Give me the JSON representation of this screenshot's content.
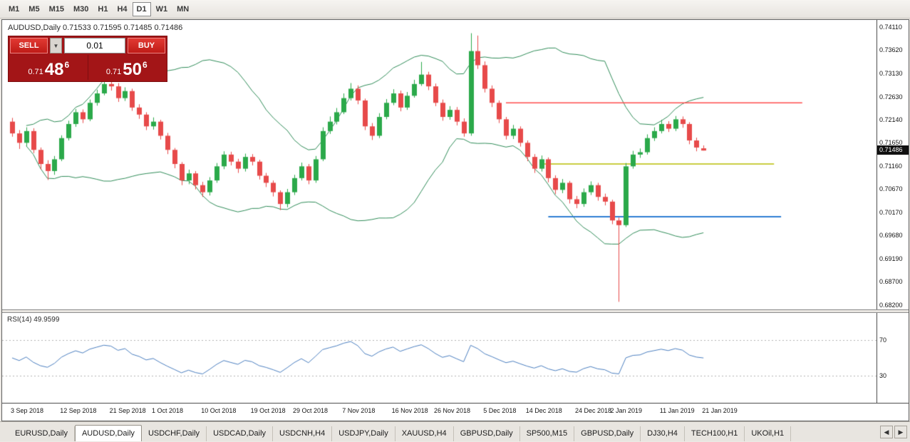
{
  "toolbar": {
    "timeframes": [
      {
        "label": "M1",
        "active": false
      },
      {
        "label": "M5",
        "active": false
      },
      {
        "label": "M15",
        "active": false
      },
      {
        "label": "M30",
        "active": false
      },
      {
        "label": "H1",
        "active": false
      },
      {
        "label": "H4",
        "active": false
      },
      {
        "label": "D1",
        "active": true
      },
      {
        "label": "W1",
        "active": false
      },
      {
        "label": "MN",
        "active": false
      }
    ]
  },
  "chart": {
    "title": "AUDUSD,Daily  0.71533 0.71595 0.71485 0.71486",
    "current_price": "0.71486",
    "price_axis_labels": [
      "0.74110",
      "0.73620",
      "0.73130",
      "0.72630",
      "0.72140",
      "0.71650",
      "0.71160",
      "0.70670",
      "0.70170",
      "0.69680",
      "0.69190",
      "0.68700",
      "0.68200"
    ]
  },
  "one_click": {
    "sell_label": "SELL",
    "buy_label": "BUY",
    "lot_value": "0.01",
    "dropdown_icon": "▼",
    "bid": {
      "prefix": "0.71",
      "big": "48",
      "sup": "6"
    },
    "ask": {
      "prefix": "0.71",
      "big": "50",
      "sup": "6"
    }
  },
  "rsi_panel": {
    "label": "RSI(14) 49.9599",
    "levels": [
      "70",
      "30"
    ]
  },
  "tab_arrows": {
    "left": "◀",
    "right": "▶"
  },
  "tabs": [
    {
      "label": "EURUSD,Daily",
      "active": false
    },
    {
      "label": "AUDUSD,Daily",
      "active": true
    },
    {
      "label": "USDCHF,Daily",
      "active": false
    },
    {
      "label": "USDCAD,Daily",
      "active": false
    },
    {
      "label": "USDCNH,H4",
      "active": false
    },
    {
      "label": "USDJPY,Daily",
      "active": false
    },
    {
      "label": "XAUUSD,H4",
      "active": false
    },
    {
      "label": "GBPUSD,Daily",
      "active": false
    },
    {
      "label": "SP500,M15",
      "active": false
    },
    {
      "label": "GBPUSD,Daily",
      "active": false
    },
    {
      "label": "DJ30,H4",
      "active": false
    },
    {
      "label": "TECH100,H1",
      "active": false
    },
    {
      "label": "UKOil,H1",
      "active": false
    }
  ],
  "ui_colors": {
    "panel_red": "#a31517",
    "trade_button_red": "#c01c18",
    "current_price_badge": "#101010"
  },
  "chart_data": {
    "type": "candlestick",
    "symbol": "AUDUSD",
    "timeframe": "Daily",
    "y_range": [
      0.682,
      0.7411
    ],
    "candle_colors": {
      "up": "#2ba94a",
      "down": "#e74a4a"
    },
    "indicators": {
      "bollinger": {
        "period": 20,
        "deviation": 2,
        "color": "#2e8b57"
      },
      "rsi": {
        "period": 14,
        "current": 49.9599,
        "levels": [
          70,
          30
        ],
        "color": "#4a7ebf",
        "level_color": "#b0b0b0"
      }
    },
    "horizontal_lines": [
      {
        "price": 0.725,
        "color": "#ff4d4d",
        "from_index": 70,
        "to_index": 112,
        "width": 1.4
      },
      {
        "price": 0.712,
        "color": "#b9bd00",
        "from_index": 75,
        "to_index": 108,
        "width": 1.4
      },
      {
        "price": 0.7008,
        "color": "#2d7dd2",
        "from_index": 76,
        "to_index": 109,
        "width": 2
      }
    ],
    "x_labels": [
      {
        "label": "3 Sep 2018",
        "index": 0
      },
      {
        "label": "12 Sep 2018",
        "index": 7
      },
      {
        "label": "21 Sep 2018",
        "index": 14
      },
      {
        "label": "1 Oct 2018",
        "index": 20
      },
      {
        "label": "10 Oct 2018",
        "index": 27
      },
      {
        "label": "19 Oct 2018",
        "index": 34
      },
      {
        "label": "29 Oct 2018",
        "index": 40
      },
      {
        "label": "7 Nov 2018",
        "index": 47
      },
      {
        "label": "16 Nov 2018",
        "index": 54
      },
      {
        "label": "26 Nov 2018",
        "index": 60
      },
      {
        "label": "5 Dec 2018",
        "index": 67
      },
      {
        "label": "14 Dec 2018",
        "index": 73
      },
      {
        "label": "24 Dec 2018",
        "index": 80
      },
      {
        "label": "2 Jan 2019",
        "index": 85
      },
      {
        "label": "11 Jan 2019",
        "index": 92
      },
      {
        "label": "21 Jan 2019",
        "index": 98
      }
    ],
    "open_high_low_close": [
      [
        0.721,
        0.7218,
        0.7178,
        0.7185
      ],
      [
        0.7185,
        0.7192,
        0.7152,
        0.7165
      ],
      [
        0.7165,
        0.7198,
        0.7158,
        0.719
      ],
      [
        0.719,
        0.7196,
        0.7143,
        0.715
      ],
      [
        0.715,
        0.7155,
        0.7108,
        0.712
      ],
      [
        0.712,
        0.7128,
        0.7086,
        0.7105
      ],
      [
        0.7105,
        0.7137,
        0.7097,
        0.713
      ],
      [
        0.713,
        0.7181,
        0.7126,
        0.7175
      ],
      [
        0.7175,
        0.7212,
        0.717,
        0.7205
      ],
      [
        0.7205,
        0.7237,
        0.7199,
        0.723
      ],
      [
        0.723,
        0.7236,
        0.7207,
        0.7215
      ],
      [
        0.7215,
        0.7257,
        0.7211,
        0.725
      ],
      [
        0.725,
        0.7278,
        0.7244,
        0.727
      ],
      [
        0.727,
        0.7304,
        0.7266,
        0.729
      ],
      [
        0.729,
        0.7298,
        0.7276,
        0.7285
      ],
      [
        0.7285,
        0.7292,
        0.7252,
        0.726
      ],
      [
        0.726,
        0.7283,
        0.7254,
        0.7275
      ],
      [
        0.7275,
        0.728,
        0.7233,
        0.724
      ],
      [
        0.724,
        0.7247,
        0.7216,
        0.7225
      ],
      [
        0.7225,
        0.723,
        0.7192,
        0.72
      ],
      [
        0.72,
        0.7219,
        0.7193,
        0.721
      ],
      [
        0.721,
        0.7214,
        0.7172,
        0.718
      ],
      [
        0.718,
        0.7186,
        0.7141,
        0.715
      ],
      [
        0.715,
        0.7154,
        0.7111,
        0.712
      ],
      [
        0.712,
        0.7124,
        0.7075,
        0.7085
      ],
      [
        0.7085,
        0.7108,
        0.7077,
        0.71
      ],
      [
        0.71,
        0.7105,
        0.7066,
        0.7075
      ],
      [
        0.7075,
        0.7082,
        0.705,
        0.706
      ],
      [
        0.706,
        0.7092,
        0.7053,
        0.7085
      ],
      [
        0.7085,
        0.7122,
        0.708,
        0.7115
      ],
      [
        0.7115,
        0.7147,
        0.7109,
        0.714
      ],
      [
        0.714,
        0.7146,
        0.7117,
        0.7125
      ],
      [
        0.7125,
        0.7131,
        0.7101,
        0.711
      ],
      [
        0.711,
        0.7142,
        0.7104,
        0.7135
      ],
      [
        0.7135,
        0.7141,
        0.7117,
        0.7125
      ],
      [
        0.7125,
        0.7129,
        0.7087,
        0.7095
      ],
      [
        0.7095,
        0.7101,
        0.7071,
        0.708
      ],
      [
        0.708,
        0.7085,
        0.7051,
        0.706
      ],
      [
        0.706,
        0.7064,
        0.7022,
        0.7035
      ],
      [
        0.7035,
        0.7067,
        0.7028,
        0.706
      ],
      [
        0.706,
        0.7097,
        0.7054,
        0.709
      ],
      [
        0.709,
        0.7123,
        0.7085,
        0.7115
      ],
      [
        0.7115,
        0.712,
        0.7077,
        0.7085
      ],
      [
        0.7085,
        0.7137,
        0.708,
        0.713
      ],
      [
        0.713,
        0.7198,
        0.7126,
        0.719
      ],
      [
        0.719,
        0.7221,
        0.7184,
        0.721
      ],
      [
        0.721,
        0.7239,
        0.7204,
        0.723
      ],
      [
        0.723,
        0.727,
        0.7226,
        0.726
      ],
      [
        0.726,
        0.7292,
        0.7255,
        0.728
      ],
      [
        0.728,
        0.7287,
        0.7247,
        0.7255
      ],
      [
        0.7255,
        0.7259,
        0.7192,
        0.72
      ],
      [
        0.72,
        0.7207,
        0.7171,
        0.718
      ],
      [
        0.718,
        0.7228,
        0.7175,
        0.722
      ],
      [
        0.722,
        0.7258,
        0.7215,
        0.725
      ],
      [
        0.725,
        0.7279,
        0.7245,
        0.727
      ],
      [
        0.727,
        0.7276,
        0.7232,
        0.724
      ],
      [
        0.724,
        0.7273,
        0.7235,
        0.7265
      ],
      [
        0.7265,
        0.7299,
        0.7261,
        0.729
      ],
      [
        0.729,
        0.7337,
        0.7286,
        0.731
      ],
      [
        0.731,
        0.7316,
        0.7277,
        0.7285
      ],
      [
        0.7285,
        0.7291,
        0.7243,
        0.725
      ],
      [
        0.725,
        0.7257,
        0.7212,
        0.722
      ],
      [
        0.722,
        0.7243,
        0.7214,
        0.7235
      ],
      [
        0.7235,
        0.7241,
        0.7202,
        0.721
      ],
      [
        0.721,
        0.7217,
        0.7178,
        0.7185
      ],
      [
        0.7185,
        0.7398,
        0.718,
        0.736
      ],
      [
        0.736,
        0.7393,
        0.7322,
        0.733
      ],
      [
        0.733,
        0.7338,
        0.7272,
        0.728
      ],
      [
        0.728,
        0.7287,
        0.7241,
        0.725
      ],
      [
        0.725,
        0.7255,
        0.7207,
        0.7215
      ],
      [
        0.7215,
        0.722,
        0.7172,
        0.718
      ],
      [
        0.718,
        0.7203,
        0.7173,
        0.7195
      ],
      [
        0.7195,
        0.72,
        0.7157,
        0.7165
      ],
      [
        0.7165,
        0.717,
        0.7126,
        0.7135
      ],
      [
        0.7135,
        0.7141,
        0.7101,
        0.711
      ],
      [
        0.711,
        0.7138,
        0.7104,
        0.713
      ],
      [
        0.713,
        0.7134,
        0.7081,
        0.709
      ],
      [
        0.709,
        0.7096,
        0.7056,
        0.7065
      ],
      [
        0.7065,
        0.7088,
        0.7058,
        0.708
      ],
      [
        0.708,
        0.7084,
        0.7036,
        0.7045
      ],
      [
        0.7045,
        0.7052,
        0.7026,
        0.7035
      ],
      [
        0.7035,
        0.7068,
        0.7029,
        0.706
      ],
      [
        0.706,
        0.7083,
        0.7054,
        0.7075
      ],
      [
        0.7075,
        0.708,
        0.7042,
        0.705
      ],
      [
        0.705,
        0.7057,
        0.7032,
        0.704
      ],
      [
        0.704,
        0.7044,
        0.6992,
        0.7
      ],
      [
        0.7,
        0.7006,
        0.6827,
        0.699
      ],
      [
        0.699,
        0.7122,
        0.6986,
        0.7115
      ],
      [
        0.7115,
        0.7148,
        0.711,
        0.714
      ],
      [
        0.714,
        0.7153,
        0.7133,
        0.7145
      ],
      [
        0.7145,
        0.7183,
        0.714,
        0.7175
      ],
      [
        0.7175,
        0.7198,
        0.7169,
        0.719
      ],
      [
        0.719,
        0.7214,
        0.7185,
        0.7205
      ],
      [
        0.7205,
        0.7211,
        0.7188,
        0.7195
      ],
      [
        0.7195,
        0.7222,
        0.719,
        0.7215
      ],
      [
        0.7215,
        0.7221,
        0.7197,
        0.7205
      ],
      [
        0.7205,
        0.7209,
        0.7162,
        0.717
      ],
      [
        0.717,
        0.7176,
        0.7147,
        0.7155
      ],
      [
        0.71533,
        0.71595,
        0.71485,
        0.71486
      ]
    ]
  }
}
